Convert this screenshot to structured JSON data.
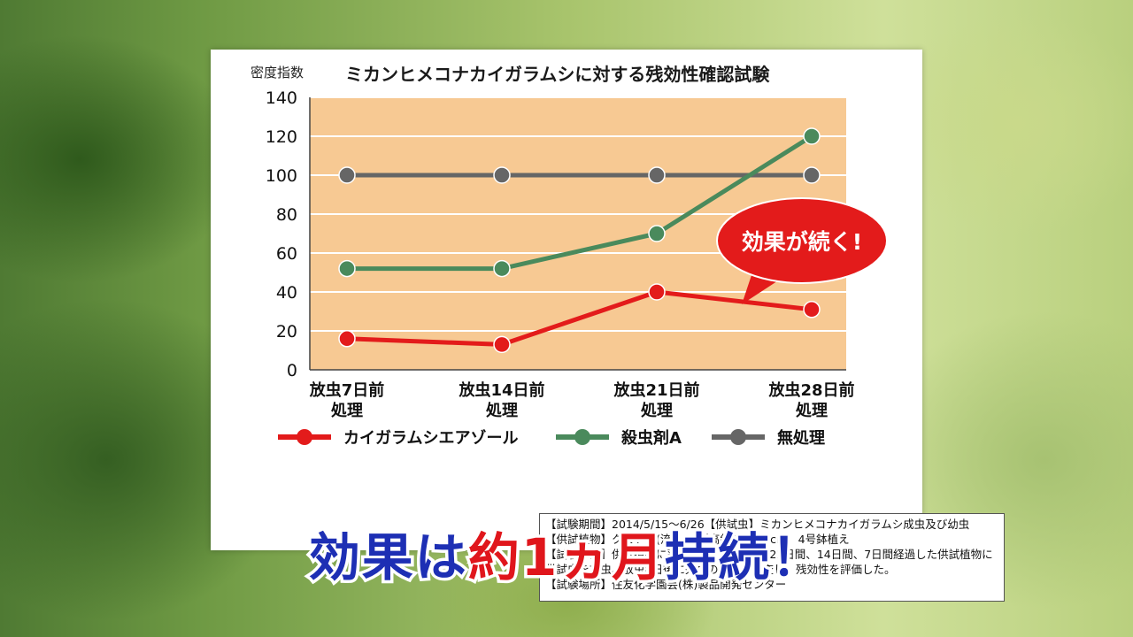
{
  "chart_data": {
    "type": "line",
    "title": "ミカンヒメコナカイガラムシに対する残効性確認試験",
    "ylabel": "密度指数",
    "ylim": [
      0,
      140
    ],
    "yticks": [
      "0",
      "20",
      "40",
      "60",
      "80",
      "100",
      "120",
      "140"
    ],
    "categories": [
      [
        "放虫7日前",
        "処理"
      ],
      [
        "放虫14日前",
        "処理"
      ],
      [
        "放虫21日前",
        "処理"
      ],
      [
        "放虫28日前",
        "処理"
      ]
    ],
    "series": [
      {
        "name": "カイガラムシエアゾール",
        "color": "#e31b1b",
        "values": [
          16,
          13,
          40,
          31
        ]
      },
      {
        "name": "殺虫剤A",
        "color": "#4a8a5c",
        "values": [
          52,
          52,
          70,
          120
        ]
      },
      {
        "name": "無処理",
        "color": "#666666",
        "values": [
          100,
          100,
          100,
          100
        ]
      }
    ],
    "grid": true,
    "legend": "bottom",
    "plot_background": "#f7c993",
    "annotation": {
      "text": "効果が続く!",
      "color": "#e31b1b",
      "points_to": "カイガラムシエアゾール"
    }
  },
  "notes": [
    "【試験期間】2014/5/15〜6/26【供試虫】ミカンヒメコナカイガラムシ成虫及び幼虫",
    "【供試植物】クロトン(流星)、樹高約30〜40cm　4号鉢植え",
    "【試験方法】供試植物に薬剤処理し28日間、21日間、14日間、7日間経過した供試植物に",
    "供試虫を放虫。放虫8日後に死亡の有無を調査し、残効性を評価した。",
    "【試験場所】住友化学園芸(株)製品開発センター"
  ],
  "caption": {
    "part1": "効果は",
    "part2": "約1ヵ月",
    "part3": "持続！"
  },
  "colors": {
    "caption_blue": "#1d2fb4",
    "caption_red": "#e0161c"
  }
}
